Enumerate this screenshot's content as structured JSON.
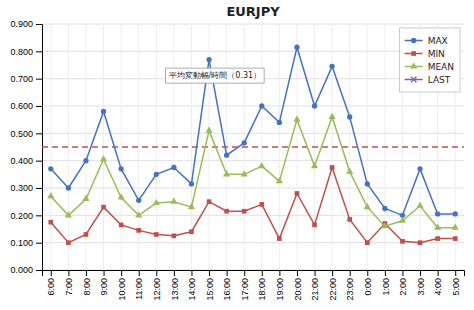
{
  "chart_data": {
    "type": "line",
    "title": "EURJPY",
    "categories": [
      "6:00",
      "7:00",
      "8:00",
      "9:00",
      "10:00",
      "11:00",
      "12:00",
      "13:00",
      "14:00",
      "15:00",
      "16:00",
      "17:00",
      "18:00",
      "19:00",
      "20:00",
      "21:00",
      "22:00",
      "23:00",
      "0:00",
      "1:00",
      "2:00",
      "3:00",
      "4:00",
      "5:00"
    ],
    "series": [
      {
        "name": "MAX",
        "color": "#4472C4",
        "marker": "circle",
        "values": [
          0.37,
          0.3,
          0.4,
          0.58,
          0.37,
          0.255,
          0.35,
          0.375,
          0.315,
          0.77,
          0.42,
          0.465,
          0.6,
          0.54,
          0.815,
          0.6,
          0.745,
          0.56,
          0.315,
          0.225,
          0.2,
          0.37,
          0.205,
          0.205
        ]
      },
      {
        "name": "MIN",
        "color": "#C0504D",
        "marker": "square",
        "values": [
          0.175,
          0.1,
          0.13,
          0.23,
          0.165,
          0.145,
          0.13,
          0.125,
          0.14,
          0.25,
          0.215,
          0.215,
          0.24,
          0.115,
          0.28,
          0.165,
          0.375,
          0.185,
          0.1,
          0.17,
          0.105,
          0.1,
          0.115,
          0.115
        ]
      },
      {
        "name": "MEAN",
        "color": "#9BBB59",
        "marker": "triangle",
        "values": [
          0.27,
          0.2,
          0.26,
          0.405,
          0.265,
          0.2,
          0.245,
          0.25,
          0.23,
          0.51,
          0.35,
          0.35,
          0.38,
          0.325,
          0.55,
          0.38,
          0.56,
          0.36,
          0.23,
          0.16,
          0.18,
          0.235,
          0.155,
          0.155
        ]
      },
      {
        "name": "LAST",
        "color": "#8064A2",
        "marker": "x",
        "values": [
          null,
          null,
          null,
          null,
          null,
          null,
          null,
          null,
          null,
          null,
          null,
          null,
          null,
          null,
          null,
          null,
          null,
          null,
          null,
          null,
          null,
          null,
          null,
          null
        ]
      }
    ],
    "hlines": [
      {
        "value": 0.45,
        "color": "#C0504D",
        "line_style": "dashed"
      }
    ],
    "annotations": [
      {
        "text": "平均変動幅/時間（0.31）"
      }
    ],
    "ylim": [
      0.0,
      0.9
    ],
    "yticks": [
      {
        "value": 0.0,
        "label": "0.000"
      },
      {
        "value": 0.1,
        "label": "0.100"
      },
      {
        "value": 0.2,
        "label": "0.200"
      },
      {
        "value": 0.3,
        "label": "0.300"
      },
      {
        "value": 0.4,
        "label": "0.400"
      },
      {
        "value": 0.5,
        "label": "0.500"
      },
      {
        "value": 0.6,
        "label": "0.600"
      },
      {
        "value": 0.7,
        "label": "0.700"
      },
      {
        "value": 0.8,
        "label": "0.800"
      },
      {
        "value": 0.9,
        "label": "0.900"
      }
    ],
    "grid": true,
    "legend": "upper right"
  }
}
